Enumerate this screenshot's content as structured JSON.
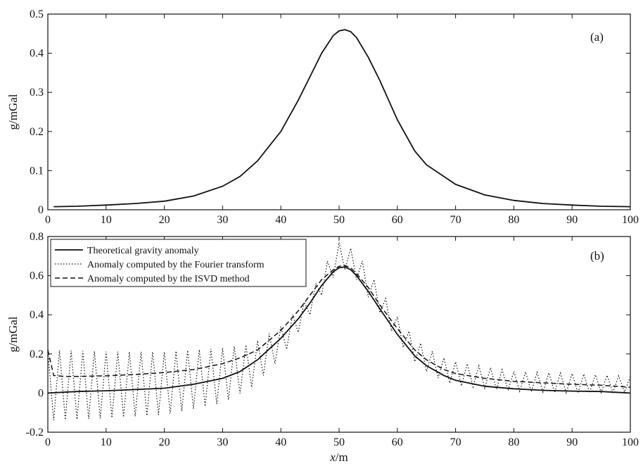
{
  "chart_data": [
    {
      "type": "line",
      "panel_label": "(a)",
      "ylabel": "g/mGal",
      "xlim": [
        0,
        100
      ],
      "ylim": [
        0,
        0.5
      ],
      "xticks": [
        "0",
        "10",
        "20",
        "30",
        "40",
        "50",
        "60",
        "70",
        "80",
        "90",
        "100"
      ],
      "yticks": [
        "0",
        "0.1",
        "0.2",
        "0.3",
        "0.4",
        "0.5"
      ],
      "series": [
        {
          "style": "solid",
          "x": [
            1,
            5,
            10,
            15,
            20,
            25,
            30,
            33,
            36,
            40,
            43,
            45,
            47,
            49,
            50,
            51,
            52,
            53,
            55,
            57,
            60,
            63,
            65,
            68,
            70,
            75,
            80,
            85,
            90,
            95,
            100
          ],
          "y": [
            0.008,
            0.009,
            0.012,
            0.016,
            0.022,
            0.035,
            0.06,
            0.085,
            0.125,
            0.2,
            0.28,
            0.34,
            0.4,
            0.445,
            0.457,
            0.46,
            0.455,
            0.44,
            0.39,
            0.33,
            0.23,
            0.15,
            0.115,
            0.085,
            0.065,
            0.038,
            0.024,
            0.016,
            0.012,
            0.009,
            0.008
          ]
        }
      ]
    },
    {
      "type": "line",
      "panel_label": "(b)",
      "ylabel": "g/mGal",
      "xlabel_italic": "x",
      "xlabel_unit": "/m",
      "xlim": [
        0,
        100
      ],
      "ylim": [
        -0.2,
        0.8
      ],
      "xticks": [
        "0",
        "10",
        "20",
        "30",
        "40",
        "50",
        "60",
        "70",
        "80",
        "90",
        "100"
      ],
      "yticks": [
        "-0.2",
        "0",
        "0.2",
        "0.4",
        "0.6",
        "0.8"
      ],
      "legend_position": "top-left",
      "series": [
        {
          "name": "Theoretical gravity anomaly",
          "style": "solid",
          "x": [
            0,
            5,
            10,
            15,
            20,
            25,
            30,
            33,
            36,
            40,
            43,
            45,
            47,
            49,
            50,
            51,
            52,
            53,
            55,
            57,
            60,
            63,
            65,
            68,
            70,
            75,
            80,
            85,
            90,
            95,
            100
          ],
          "y": [
            0.0,
            0.008,
            0.012,
            0.018,
            0.025,
            0.045,
            0.075,
            0.11,
            0.17,
            0.28,
            0.38,
            0.46,
            0.55,
            0.62,
            0.64,
            0.645,
            0.63,
            0.6,
            0.52,
            0.43,
            0.3,
            0.19,
            0.14,
            0.09,
            0.065,
            0.035,
            0.022,
            0.014,
            0.01,
            0.008,
            0.0
          ]
        },
        {
          "name": "Anomaly computed by the Fourier transform",
          "style": "dotted",
          "baseline_x": [
            0,
            10,
            20,
            30,
            35,
            40,
            43,
            45,
            47,
            49,
            50,
            51,
            52,
            53,
            55,
            57,
            60,
            63,
            65,
            68,
            70,
            80,
            90,
            100
          ],
          "baseline_y": [
            0.04,
            0.042,
            0.05,
            0.09,
            0.14,
            0.26,
            0.37,
            0.45,
            0.56,
            0.66,
            0.69,
            0.7,
            0.68,
            0.65,
            0.56,
            0.47,
            0.33,
            0.22,
            0.17,
            0.12,
            0.1,
            0.06,
            0.05,
            0.045
          ],
          "oscillation_amplitude": [
            0.18,
            0.17,
            0.16,
            0.14,
            0.11,
            0.08,
            0.06,
            0.05,
            0.06,
            0.07,
            0.08,
            0.07,
            0.06,
            0.07,
            0.07,
            0.06,
            0.06,
            0.06,
            0.06,
            0.06,
            0.06,
            0.05,
            0.05,
            0.04
          ],
          "oscillation_period": 2
        },
        {
          "name": "Anomaly computed by the ISVD method",
          "style": "dashed",
          "x": [
            0,
            1,
            3,
            5,
            10,
            15,
            20,
            25,
            30,
            33,
            36,
            40,
            43,
            45,
            47,
            49,
            50,
            51,
            52,
            53,
            55,
            57,
            60,
            63,
            65,
            68,
            70,
            75,
            80,
            85,
            90,
            95,
            100
          ],
          "y": [
            0.22,
            0.09,
            0.085,
            0.085,
            0.088,
            0.095,
            0.105,
            0.12,
            0.15,
            0.18,
            0.22,
            0.32,
            0.42,
            0.5,
            0.58,
            0.63,
            0.648,
            0.652,
            0.64,
            0.61,
            0.54,
            0.45,
            0.33,
            0.22,
            0.17,
            0.12,
            0.1,
            0.075,
            0.06,
            0.052,
            0.045,
            0.04,
            0.03
          ]
        }
      ]
    }
  ]
}
